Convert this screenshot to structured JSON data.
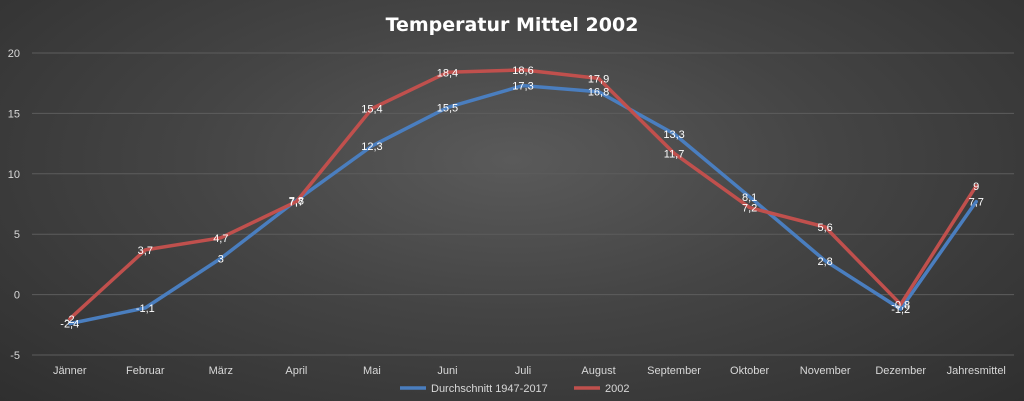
{
  "chart_data": {
    "type": "line",
    "title": "Temperatur Mittel 2002",
    "categories": [
      "Jänner",
      "Februar",
      "März",
      "April",
      "Mai",
      "Juni",
      "Juli",
      "August",
      "September",
      "Oktober",
      "November",
      "Dezember",
      "Jahresmittel"
    ],
    "ylim": [
      -5,
      20
    ],
    "yticks": [
      -5,
      0,
      5,
      10,
      15,
      20
    ],
    "grid": true,
    "legend_position": "bottom",
    "series": [
      {
        "name": "Durchschnitt 1947-2017",
        "color": "#4a7ebf",
        "values": [
          -2.4,
          -1.1,
          3,
          7.8,
          12.3,
          15.5,
          17.3,
          16.8,
          13.3,
          8.1,
          2.8,
          -1.2,
          7.7
        ],
        "labels": [
          "-2,4",
          "-1,1",
          "3",
          "7,8",
          "12,3",
          "15,5",
          "17,3",
          "16,8",
          "13,3",
          "8,1",
          "2,8",
          "-1,2",
          "7,7"
        ]
      },
      {
        "name": "2002",
        "color": "#c0504d",
        "values": [
          -2,
          3.7,
          4.7,
          7.7,
          15.4,
          18.4,
          18.6,
          17.9,
          11.7,
          7.2,
          5.6,
          -0.8,
          9
        ],
        "labels": [
          "-2",
          "3,7",
          "4,7",
          "7,7",
          "15,4",
          "18,4",
          "18,6",
          "17,9",
          "11,7",
          "7,2",
          "5,6",
          "-0,8",
          "9"
        ]
      }
    ]
  }
}
